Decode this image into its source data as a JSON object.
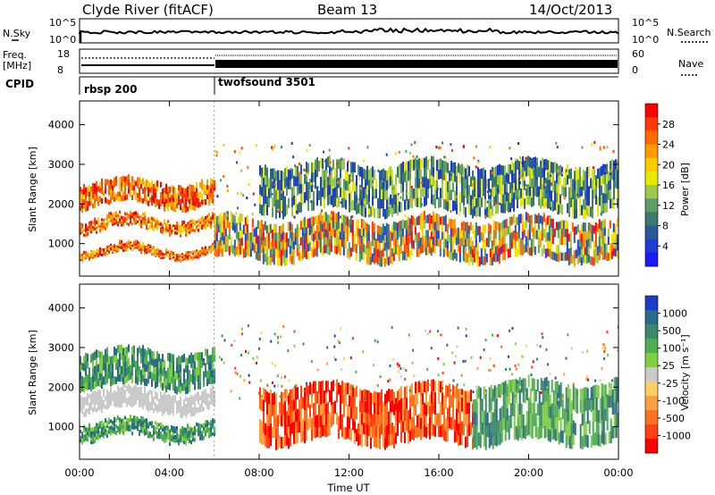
{
  "header": {
    "station": "Clyde River (fitACF)",
    "beam": "Beam 13",
    "date": "14/Oct/2013"
  },
  "top_panels": {
    "nsky_label": "N.Sky",
    "nsky_ticks": [
      "10^5",
      "10^0"
    ],
    "nsearch_label": "N.Search",
    "nsearch_ticks": [
      "10^5",
      "10^0"
    ],
    "freq_label": "Freq.",
    "freq_unit": "[MHz]",
    "freq_ticks": [
      "18",
      "8"
    ],
    "nave_label": "Nave",
    "nave_ticks": [
      "60",
      "0"
    ],
    "cpid_label": "CPID",
    "cpid_modes": [
      {
        "name": "rbsp 200",
        "start_hour": 0
      },
      {
        "name": "twofsound 3501",
        "start_hour": 6
      }
    ]
  },
  "chart_data": [
    {
      "type": "heatmap",
      "panel": "power",
      "ylabel": "Slant Range [km]",
      "yticks": [
        "1000",
        "2000",
        "3000",
        "4000"
      ],
      "ylim": [
        180,
        4600
      ],
      "xlim": [
        0,
        24
      ],
      "colorbar": {
        "label": "Power [dB]",
        "ticks": [
          "28",
          "24",
          "20",
          "16",
          "12",
          "8",
          "4"
        ],
        "colors": [
          "#ff0000",
          "#ff3a00",
          "#ff6a00",
          "#ff9a00",
          "#ffcc00",
          "#e8e800",
          "#9cc94a",
          "#5c9e66",
          "#3a7a6c",
          "#2a5a9a",
          "#1e3cd2",
          "#1a18ff"
        ]
      },
      "bands": [
        {
          "hours": [
            0,
            6
          ],
          "range_km": [
            700,
            900
          ],
          "level": "high"
        },
        {
          "hours": [
            0,
            6
          ],
          "range_km": [
            1350,
            1650
          ],
          "level": "high"
        },
        {
          "hours": [
            0,
            6
          ],
          "range_km": [
            1950,
            2550
          ],
          "level": "high"
        },
        {
          "hours": [
            6,
            24
          ],
          "range_km": [
            600,
            1600
          ],
          "level": "mixed"
        },
        {
          "hours": [
            8,
            24
          ],
          "range_km": [
            1800,
            3000
          ],
          "level": "low"
        }
      ]
    },
    {
      "type": "heatmap",
      "panel": "velocity",
      "ylabel": "Slant Range [km]",
      "xlabel": "Time UT",
      "yticks": [
        "1000",
        "2000",
        "3000",
        "4000"
      ],
      "xticks": [
        "00:00",
        "04:00",
        "08:00",
        "12:00",
        "16:00",
        "20:00",
        "00:00"
      ],
      "ylim": [
        180,
        4600
      ],
      "xlim": [
        0,
        24
      ],
      "colorbar": {
        "label": "Velocity [m s⁻¹]",
        "ticks": [
          "1000",
          "500",
          "100",
          "25",
          "-25",
          "-100",
          "-500",
          "-1000"
        ],
        "colors": [
          "#1a3cc8",
          "#2a6a8a",
          "#3a8a6a",
          "#4caf50",
          "#7ed03e",
          "#cacaca",
          "#ffd060",
          "#ffa040",
          "#ff7020",
          "#ff4010",
          "#ff0000"
        ]
      },
      "bands": [
        {
          "hours": [
            0,
            6
          ],
          "range_km": [
            700,
            1100
          ],
          "velocity": "positive-moderate"
        },
        {
          "hours": [
            0,
            6
          ],
          "range_km": [
            1400,
            1900
          ],
          "velocity": "near-zero"
        },
        {
          "hours": [
            0,
            6
          ],
          "range_km": [
            2000,
            2900
          ],
          "velocity": "positive-moderate"
        },
        {
          "hours": [
            8,
            17.5
          ],
          "range_km": [
            600,
            2000
          ],
          "velocity": "negative"
        },
        {
          "hours": [
            17.5,
            24
          ],
          "range_km": [
            600,
            2100
          ],
          "velocity": "positive-moderate"
        }
      ]
    }
  ]
}
